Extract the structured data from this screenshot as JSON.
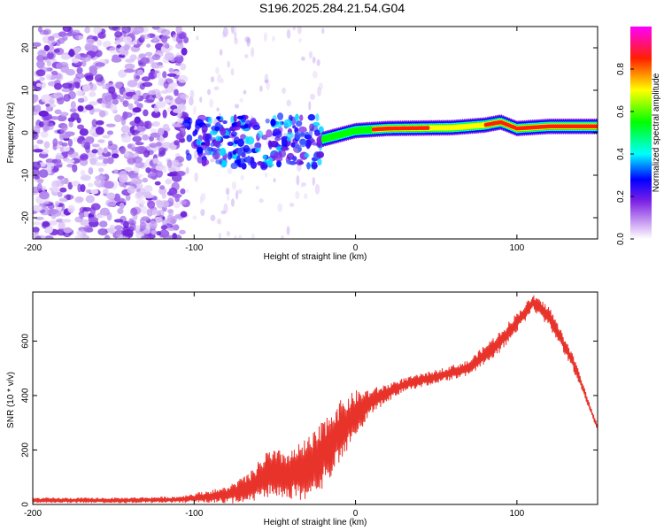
{
  "page": {
    "title": "S196.2025.284.21.54.G04"
  },
  "chart_data": [
    {
      "type": "heatmap",
      "title": "S196.2025.284.21.54.G04",
      "xlabel": "Height of straight line (km)",
      "ylabel": "Frequency (Hz)",
      "xlim": [
        -200,
        150
      ],
      "ylim": [
        -25,
        25
      ],
      "x_ticks": [
        -200,
        -100,
        0,
        100
      ],
      "x_tick_labels": [
        "-200",
        "-100",
        "0",
        "100"
      ],
      "y_ticks": [
        -20,
        -10,
        0,
        10,
        20
      ],
      "y_tick_labels": [
        "-20",
        "-10",
        "0",
        "10",
        "20"
      ],
      "colorbar": {
        "label": "Normalized spectral amplitude",
        "range": [
          0,
          1
        ],
        "ticks": [
          0.0,
          0.2,
          0.4,
          0.6,
          0.8
        ],
        "tick_labels": [
          "0.0",
          "0.2",
          "0.4",
          "0.6",
          "0.8"
        ],
        "colors": [
          "#ffffff",
          "#8a2be2",
          "#0000ff",
          "#00ffff",
          "#00ff00",
          "#ffff00",
          "#ff0000",
          "#ff00ff"
        ]
      },
      "regions": [
        {
          "name": "noise-scatter",
          "x_range": [
            -200,
            -105
          ],
          "freq_range": [
            -25,
            25
          ],
          "amplitude": 0.15
        },
        {
          "name": "transition-blobs",
          "x_range": [
            -105,
            -20
          ],
          "freq_range": [
            -8,
            4
          ],
          "amplitude": 0.3
        },
        {
          "name": "spectral-line",
          "points": [
            [
              -20,
              -1.5
            ],
            [
              0,
              0.5
            ],
            [
              20,
              1.0
            ],
            [
              60,
              1.2
            ],
            [
              80,
              1.8
            ],
            [
              90,
              2.5
            ],
            [
              100,
              1.0
            ],
            [
              120,
              1.5
            ],
            [
              150,
              1.5
            ]
          ],
          "amplitude": 0.95
        }
      ]
    },
    {
      "type": "line",
      "title": "",
      "xlabel": "Height of straight line (km)",
      "ylabel": "SNR (10 * v/v)",
      "xlim": [
        -200,
        150
      ],
      "ylim": [
        0,
        780
      ],
      "x_ticks": [
        -200,
        -100,
        0,
        100
      ],
      "x_tick_labels": [
        "-200",
        "-100",
        "0",
        "100"
      ],
      "y_ticks": [
        0,
        200,
        400,
        600
      ],
      "y_tick_labels": [
        "0",
        "200",
        "400",
        "600"
      ],
      "color": "#e8332b",
      "envelope": {
        "x": [
          -200,
          -150,
          -110,
          -80,
          -65,
          -55,
          -40,
          -25,
          -15,
          -5,
          0,
          10,
          30,
          50,
          70,
          90,
          110,
          120,
          135,
          150
        ],
        "mid": [
          15,
          15,
          18,
          35,
          60,
          110,
          110,
          140,
          230,
          300,
          330,
          380,
          440,
          470,
          500,
          600,
          740,
          690,
          520,
          280
        ],
        "amp": [
          10,
          10,
          12,
          30,
          60,
          90,
          90,
          130,
          130,
          100,
          90,
          45,
          25,
          25,
          30,
          40,
          30,
          40,
          30,
          10
        ]
      }
    }
  ]
}
